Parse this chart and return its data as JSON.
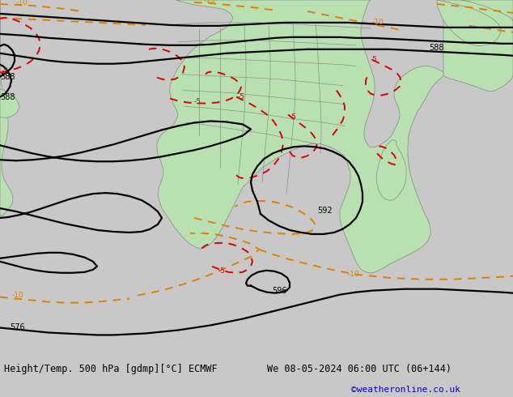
{
  "title_left": "Height/Temp. 500 hPa [gdmp][°C] ECMWF",
  "title_right": "We 08-05-2024 06:00 UTC (06+144)",
  "credit": "©weatheronline.co.uk",
  "bg_color": "#c8c8c8",
  "land_color": "#b8e0b0",
  "contour_black": "#000000",
  "contour_orange": "#e08000",
  "contour_red": "#dd0000",
  "border_color": "#888888",
  "title_fontsize": 8.5,
  "credit_fontsize": 8,
  "credit_color": "#0000cc",
  "label_fs": 7,
  "fig_width": 6.34,
  "fig_height": 4.9,
  "dpi": 100
}
